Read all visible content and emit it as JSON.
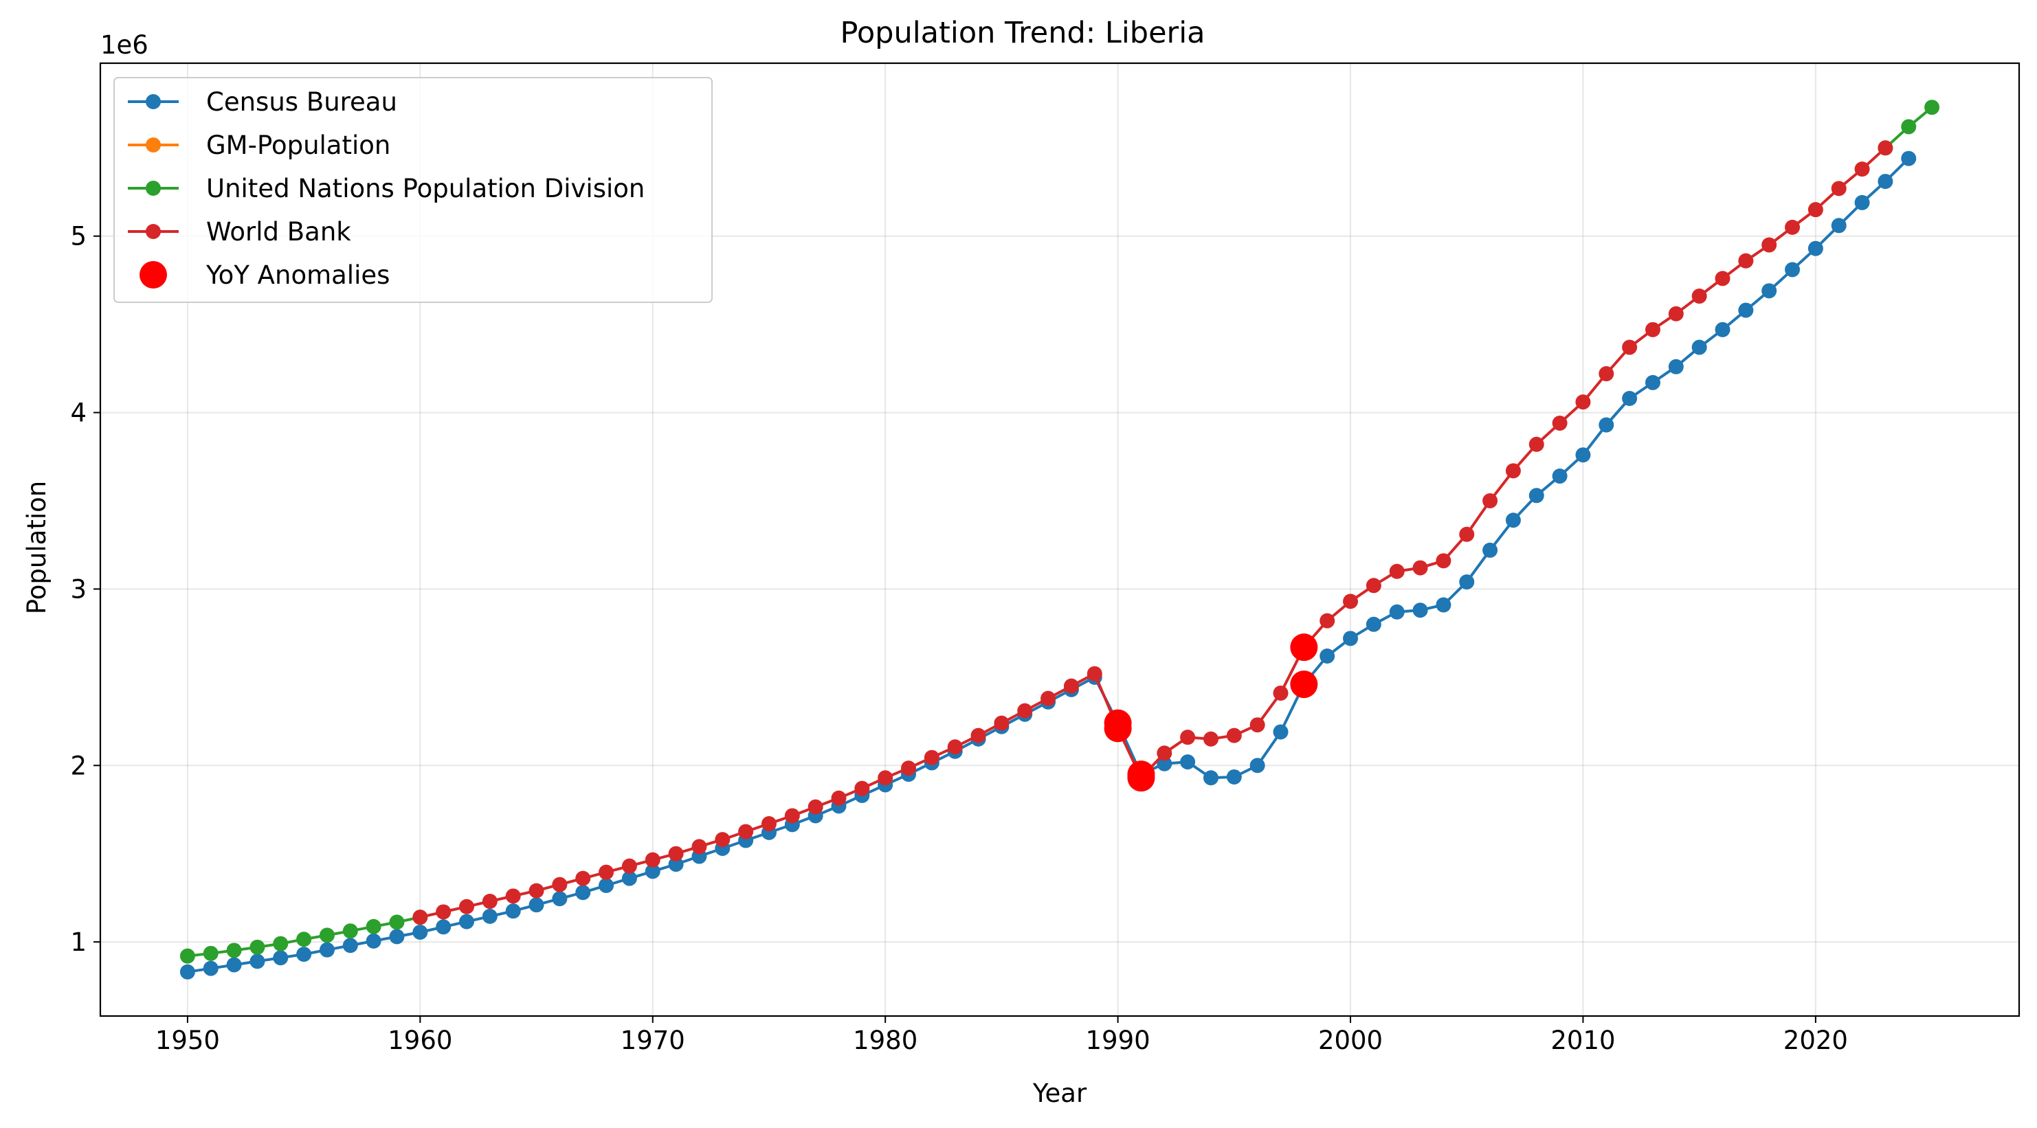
{
  "chart_data": {
    "type": "line",
    "title": "Population Trend: Liberia",
    "xlabel": "Year",
    "ylabel": "Population",
    "y_offset_label": "1e6",
    "xlim": [
      1946.25,
      2028.75
    ],
    "ylim": [
      580000,
      5980000
    ],
    "x_ticks": [
      1950,
      1960,
      1970,
      1980,
      1990,
      2000,
      2010,
      2020
    ],
    "y_ticks": [
      1000000,
      2000000,
      3000000,
      4000000,
      5000000
    ],
    "y_tick_labels": [
      "1",
      "2",
      "3",
      "4",
      "5"
    ],
    "grid": true,
    "legend_position": "top-left",
    "series": [
      {
        "name": "Census Bureau",
        "color": "#1f77b4",
        "x": [
          1950,
          1951,
          1952,
          1953,
          1954,
          1955,
          1956,
          1957,
          1958,
          1959,
          1960,
          1961,
          1962,
          1963,
          1964,
          1965,
          1966,
          1967,
          1968,
          1969,
          1970,
          1971,
          1972,
          1973,
          1974,
          1975,
          1976,
          1977,
          1978,
          1979,
          1980,
          1981,
          1982,
          1983,
          1984,
          1985,
          1986,
          1987,
          1988,
          1989,
          1990,
          1991,
          1992,
          1993,
          1994,
          1995,
          1996,
          1997,
          1998,
          1999,
          2000,
          2001,
          2002,
          2003,
          2004,
          2005,
          2006,
          2007,
          2008,
          2009,
          2010,
          2011,
          2012,
          2013,
          2014,
          2015,
          2016,
          2017,
          2018,
          2019,
          2020,
          2021,
          2022,
          2023,
          2024
        ],
        "y": [
          830000,
          850000,
          870000,
          890000,
          910000,
          930000,
          955000,
          980000,
          1005000,
          1030000,
          1055000,
          1085000,
          1115000,
          1145000,
          1175000,
          1210000,
          1245000,
          1280000,
          1320000,
          1360000,
          1400000,
          1440000,
          1485000,
          1530000,
          1575000,
          1620000,
          1665000,
          1715000,
          1770000,
          1830000,
          1890000,
          1950000,
          2015000,
          2080000,
          2150000,
          2220000,
          2290000,
          2360000,
          2430000,
          2500000,
          2240000,
          1950000,
          2010000,
          2020000,
          1930000,
          1935000,
          2000000,
          2190000,
          2460000,
          2620000,
          2720000,
          2800000,
          2870000,
          2880000,
          2910000,
          3040000,
          3220000,
          3390000,
          3530000,
          3640000,
          3760000,
          3930000,
          4080000,
          4170000,
          4260000,
          4370000,
          4470000,
          4580000,
          4690000,
          4810000,
          4930000,
          5060000,
          5190000,
          5310000,
          5440000
        ]
      },
      {
        "name": "GM-Population",
        "color": "#ff7f0e",
        "x": [],
        "y": []
      },
      {
        "name": "United Nations Population Division",
        "color": "#2ca02c",
        "x": [
          1950,
          1951,
          1952,
          1953,
          1954,
          1955,
          1956,
          1957,
          1958,
          1959,
          1960,
          2023,
          2024,
          2025
        ],
        "y": [
          920000,
          935000,
          952000,
          970000,
          990000,
          1015000,
          1038000,
          1062000,
          1087000,
          1112000,
          1140000,
          5500000,
          5620000,
          5730000
        ]
      },
      {
        "name": "World Bank",
        "color": "#d62728",
        "x": [
          1960,
          1961,
          1962,
          1963,
          1964,
          1965,
          1966,
          1967,
          1968,
          1969,
          1970,
          1971,
          1972,
          1973,
          1974,
          1975,
          1976,
          1977,
          1978,
          1979,
          1980,
          1981,
          1982,
          1983,
          1984,
          1985,
          1986,
          1987,
          1988,
          1989,
          1990,
          1991,
          1992,
          1993,
          1994,
          1995,
          1996,
          1997,
          1998,
          1999,
          2000,
          2001,
          2002,
          2003,
          2004,
          2005,
          2006,
          2007,
          2008,
          2009,
          2010,
          2011,
          2012,
          2013,
          2014,
          2015,
          2016,
          2017,
          2018,
          2019,
          2020,
          2021,
          2022,
          2023
        ],
        "y": [
          1140000,
          1170000,
          1200000,
          1230000,
          1260000,
          1290000,
          1325000,
          1360000,
          1395000,
          1430000,
          1465000,
          1500000,
          1540000,
          1580000,
          1625000,
          1670000,
          1715000,
          1765000,
          1815000,
          1870000,
          1930000,
          1985000,
          2045000,
          2105000,
          2170000,
          2240000,
          2310000,
          2380000,
          2450000,
          2520000,
          2210000,
          1930000,
          2070000,
          2160000,
          2150000,
          2170000,
          2230000,
          2410000,
          2670000,
          2820000,
          2930000,
          3020000,
          3100000,
          3120000,
          3160000,
          3310000,
          3500000,
          3670000,
          3820000,
          3940000,
          4060000,
          4220000,
          4370000,
          4470000,
          4560000,
          4660000,
          4760000,
          4860000,
          4950000,
          5050000,
          5150000,
          5270000,
          5380000,
          5500000
        ]
      }
    ],
    "anomalies": {
      "name": "YoY Anomalies",
      "color": "#ff0000",
      "x": [
        1990,
        1990,
        1991,
        1991,
        1998,
        1998
      ],
      "y": [
        2240000,
        2210000,
        1950000,
        1930000,
        2460000,
        2670000
      ]
    }
  }
}
